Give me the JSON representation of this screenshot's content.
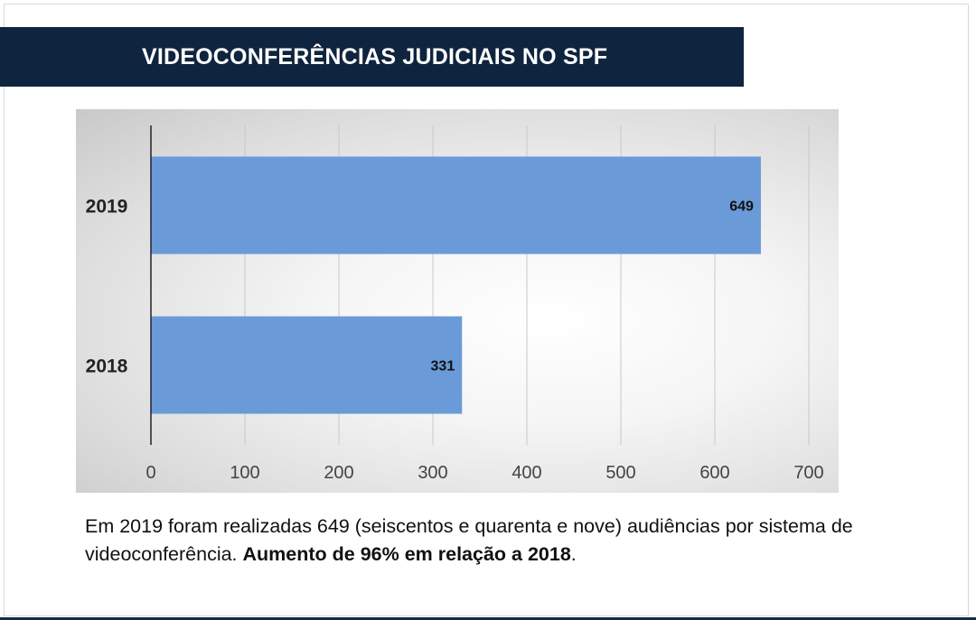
{
  "title": "VIDEOCONFERÊNCIAS JUDICIAIS NO SPF",
  "caption": {
    "text": "Em 2019 foram realizadas 649 (seiscentos e quarenta e nove) audiências por sistema de videoconferência. ",
    "bold": "Aumento de 96% em relação a 2018",
    "end": "."
  },
  "colors": {
    "title_bg": "#0f243e",
    "bar": "#6a9bd8",
    "grid": "#c8c8c8",
    "axis": "#222222"
  },
  "chart_data": {
    "type": "bar",
    "orientation": "horizontal",
    "categories": [
      "2019",
      "2018"
    ],
    "values": [
      649,
      331
    ],
    "data_labels": [
      "649",
      "331"
    ],
    "xlim": [
      0,
      700
    ],
    "xticks": [
      "0",
      "100",
      "200",
      "300",
      "400",
      "500",
      "600",
      "700"
    ],
    "title": "",
    "xlabel": "",
    "ylabel": "",
    "grid": true,
    "legend": "none"
  }
}
